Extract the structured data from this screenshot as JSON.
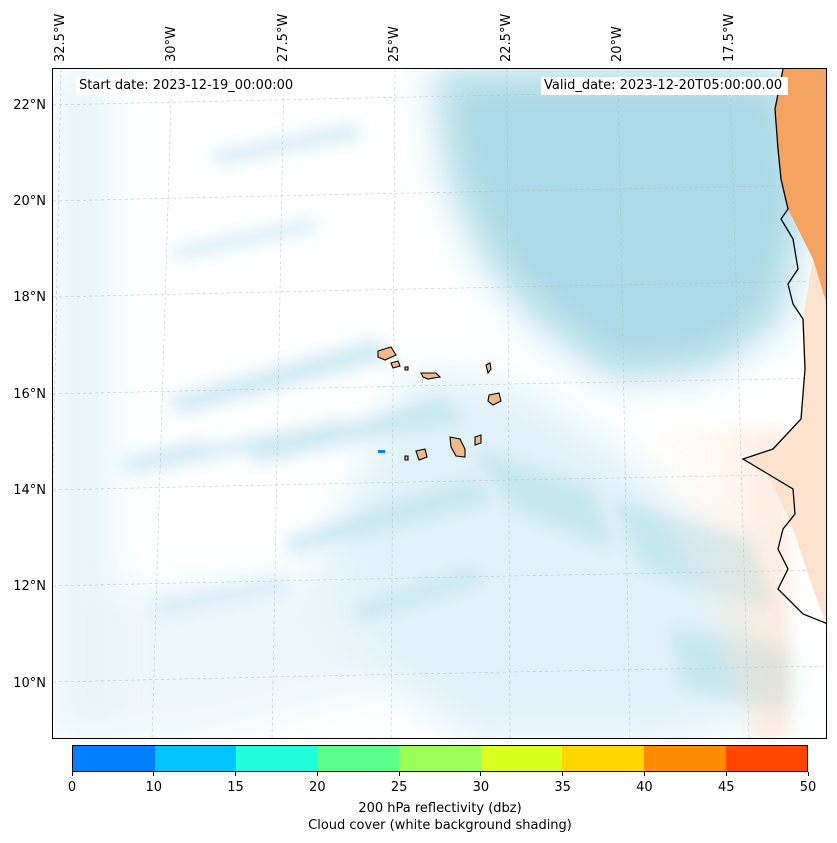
{
  "map": {
    "start_date": "Start date: 2023-12-19_00:00:00",
    "valid_date": "Valid_date: 2023-12-20T05:00:00.00",
    "lon_labels": [
      "32.5°W",
      "30°W",
      "27.5°W",
      "25°W",
      "22.5°W",
      "20°W",
      "17.5°W"
    ],
    "lat_labels": [
      "22°N",
      "20°N",
      "18°N",
      "16°N",
      "14°N",
      "12°N",
      "10°N"
    ],
    "colors": {
      "cloud": "#a8d8e6",
      "land": "#f4a460",
      "coast": "#000000",
      "reflectivity_spot": "#0080ff"
    }
  },
  "colorbar": {
    "ticks": [
      "0",
      "10",
      "15",
      "20",
      "25",
      "30",
      "35",
      "40",
      "45",
      "50"
    ],
    "colors": [
      "#0080ff",
      "#00c4ff",
      "#20ffd9",
      "#5dff8c",
      "#9cff55",
      "#d9ff1f",
      "#ffd700",
      "#ff8c00",
      "#ff4500"
    ],
    "label": "200 hPa reflectivity (dbz)",
    "sublabel": "Cloud cover (white background shading)"
  }
}
